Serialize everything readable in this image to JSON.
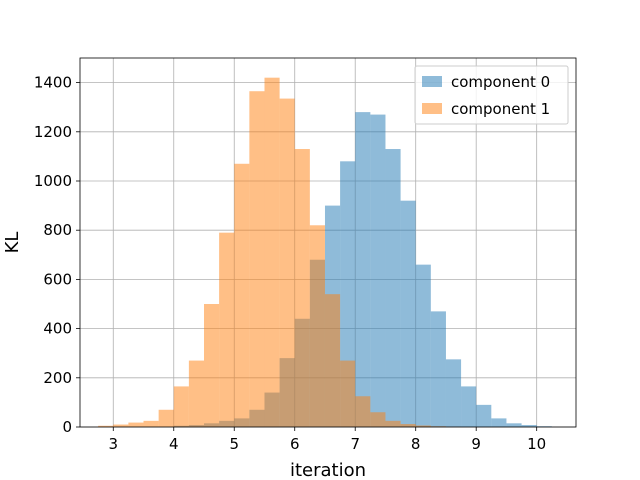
{
  "chart_data": {
    "type": "bar",
    "subtype": "histogram-overlay",
    "title": "",
    "xlabel": "iteration",
    "ylabel": "KL",
    "xlim": [
      2.45,
      10.65
    ],
    "ylim": [
      0,
      1500
    ],
    "xticks": [
      3,
      4,
      5,
      6,
      7,
      8,
      9,
      10
    ],
    "yticks": [
      0,
      200,
      400,
      600,
      800,
      1000,
      1200,
      1400
    ],
    "grid": true,
    "legend_position": "top-right",
    "bin_width": 0.25,
    "series": [
      {
        "name": "component 0",
        "color": "#1f77b4",
        "alpha": 0.5,
        "bin_start": 3.75,
        "values": [
          0,
          5,
          8,
          15,
          25,
          35,
          70,
          140,
          280,
          440,
          680,
          900,
          1080,
          1280,
          1270,
          1130,
          920,
          660,
          470,
          275,
          165,
          90,
          35,
          15,
          8,
          3
        ]
      },
      {
        "name": "component 1",
        "color": "#ff7f0e",
        "alpha": 0.5,
        "bin_start": 2.75,
        "values": [
          5,
          10,
          18,
          25,
          70,
          165,
          270,
          500,
          790,
          1070,
          1365,
          1420,
          1335,
          1130,
          820,
          540,
          270,
          125,
          60,
          25,
          12,
          6,
          3,
          1
        ]
      }
    ]
  }
}
